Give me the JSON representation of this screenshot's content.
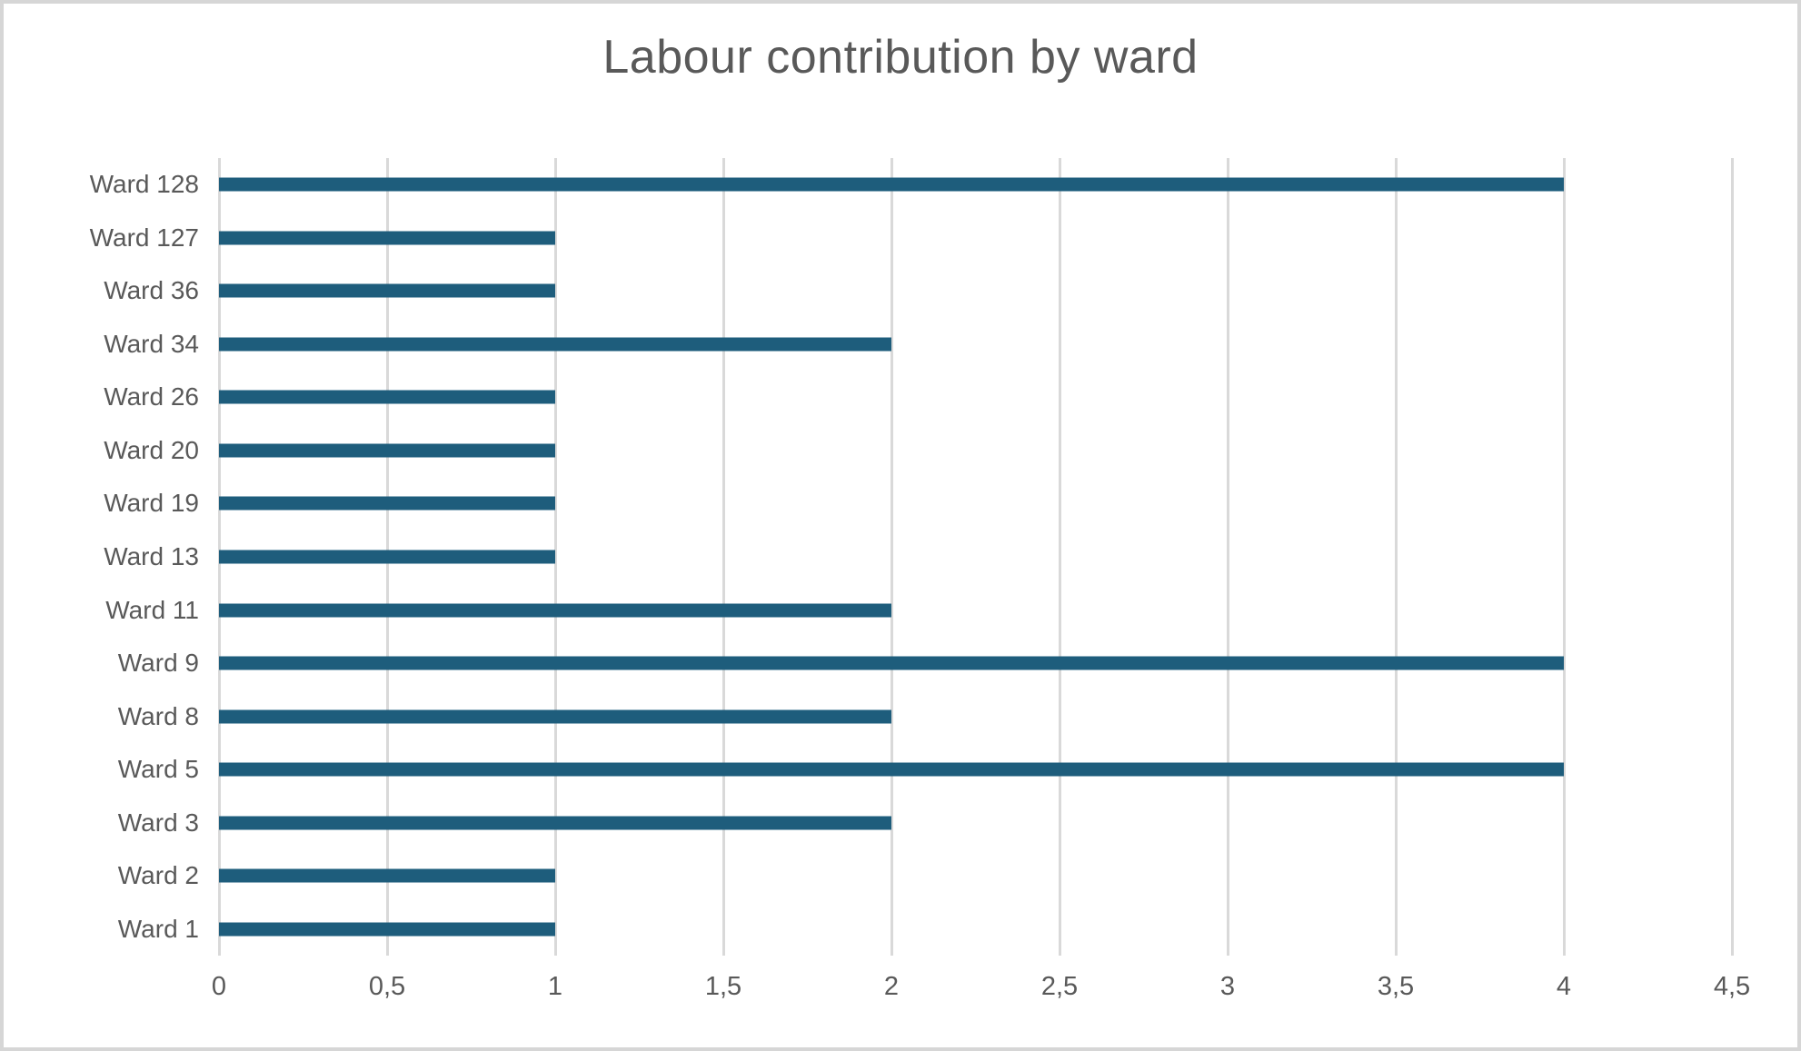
{
  "chart_data": {
    "type": "bar",
    "orientation": "horizontal",
    "title": "Labour contribution by ward",
    "categories": [
      "Ward 128",
      "Ward 127",
      "Ward 36",
      "Ward 34",
      "Ward 26",
      "Ward 20",
      "Ward 19",
      "Ward 13",
      "Ward 11",
      "Ward 9",
      "Ward 8",
      "Ward 5",
      "Ward 3",
      "Ward 2",
      "Ward 1"
    ],
    "values": [
      4,
      1,
      1,
      2,
      1,
      1,
      1,
      1,
      2,
      4,
      2,
      4,
      2,
      1,
      1
    ],
    "x_tick_labels": [
      "0",
      "0,5",
      "1",
      "1,5",
      "2",
      "2,5",
      "3",
      "3,5",
      "4",
      "4,5"
    ],
    "x_tick_values": [
      0,
      0.5,
      1,
      1.5,
      2,
      2.5,
      3,
      3.5,
      4,
      4.5
    ],
    "xlim": [
      0,
      4.5
    ],
    "ylabel": "",
    "xlabel": "",
    "grid": "vertical-on",
    "legend": false,
    "colors": {
      "bar": "#1E5D7C",
      "gridline": "#D9D9D9",
      "text": "#595959",
      "background": "#FFFFFF",
      "border": "#D6D6D6"
    }
  }
}
